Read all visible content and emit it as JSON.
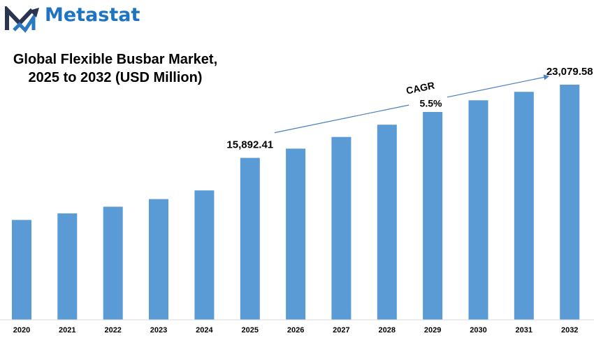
{
  "brand": {
    "name": "Metastat",
    "logo_icon": "metastat-m-logo",
    "colors": {
      "navy": "#2a3551",
      "blue": "#1f74c2"
    }
  },
  "title_line1": "Global Flexible Busbar Market,",
  "title_line2": "2025 to 2032 (USD Million)",
  "chart_data": {
    "type": "bar",
    "categories": [
      "2020",
      "2021",
      "2022",
      "2023",
      "2024",
      "2025",
      "2026",
      "2027",
      "2028",
      "2029",
      "2030",
      "2031",
      "2032"
    ],
    "series": [
      {
        "values": [
          9800,
          10450,
          11100,
          11850,
          12700,
          15892.41,
          16800,
          17950,
          19150,
          20400,
          21550,
          22380,
          23079.58
        ]
      }
    ],
    "bar_color": "#5b9bd5",
    "ylim": [
      0,
      23079.58
    ],
    "data_labels": [
      {
        "category": "2025",
        "text": "15,892.41"
      },
      {
        "category": "2032",
        "text": "23,079.58"
      }
    ],
    "annotation": {
      "label": "CAGR",
      "value": "5.5%",
      "from": "2025",
      "to": "2032"
    },
    "grid": false,
    "legend": "none"
  }
}
